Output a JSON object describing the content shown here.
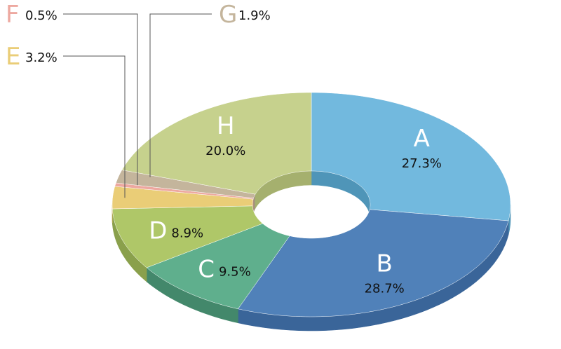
{
  "chart_data": {
    "type": "pie",
    "variant": "3d-donut",
    "title": "",
    "legend": "none",
    "slices": [
      {
        "label": "A",
        "value": 27.3,
        "display": "27.3%",
        "color": "#72B9DE",
        "side": "#4F95B8",
        "label_style": "inside"
      },
      {
        "label": "B",
        "value": 28.7,
        "display": "28.7%",
        "color": "#5081B9",
        "side": "#3A6599",
        "label_style": "inside"
      },
      {
        "label": "C",
        "value": 9.5,
        "display": "9.5%",
        "color": "#5FAF8D",
        "side": "#43886B",
        "label_style": "inside"
      },
      {
        "label": "D",
        "value": 8.9,
        "display": "8.9%",
        "color": "#AFC768",
        "side": "#8AA04C",
        "label_style": "inside"
      },
      {
        "label": "E",
        "value": 3.2,
        "display": "3.2%",
        "color": "#EACD77",
        "side": "#C9AD59",
        "label_style": "callout"
      },
      {
        "label": "F",
        "value": 0.5,
        "display": "0.5%",
        "color": "#EDA8A0",
        "side": "#C98880",
        "label_style": "callout"
      },
      {
        "label": "G",
        "value": 1.9,
        "display": "1.9%",
        "color": "#C4B59C",
        "side": "#A3957D",
        "label_style": "callout"
      },
      {
        "label": "H",
        "value": 20.0,
        "display": "20.0%",
        "color": "#C6D18D",
        "side": "#A5B06E",
        "label_style": "inside"
      }
    ]
  }
}
